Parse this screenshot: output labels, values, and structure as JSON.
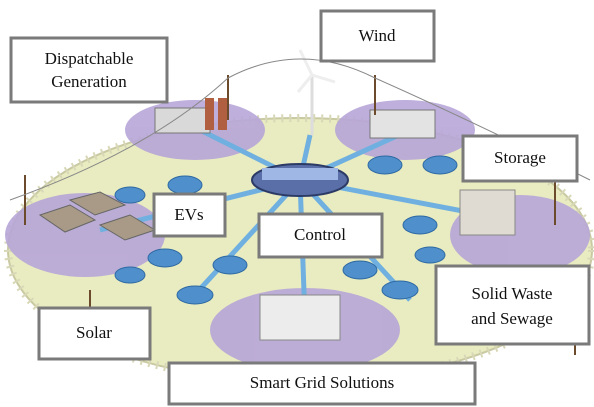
{
  "labels": {
    "dispatchable": {
      "lines": [
        "Dispatchable",
        "Generation"
      ]
    },
    "wind": "Wind",
    "storage": "Storage",
    "evs": "EVs",
    "control": "Control",
    "solid_waste": {
      "lines": [
        "Solid Waste",
        "and Sewage"
      ]
    },
    "solar": "Solar",
    "smart_grid": "Smart Grid Solutions"
  }
}
